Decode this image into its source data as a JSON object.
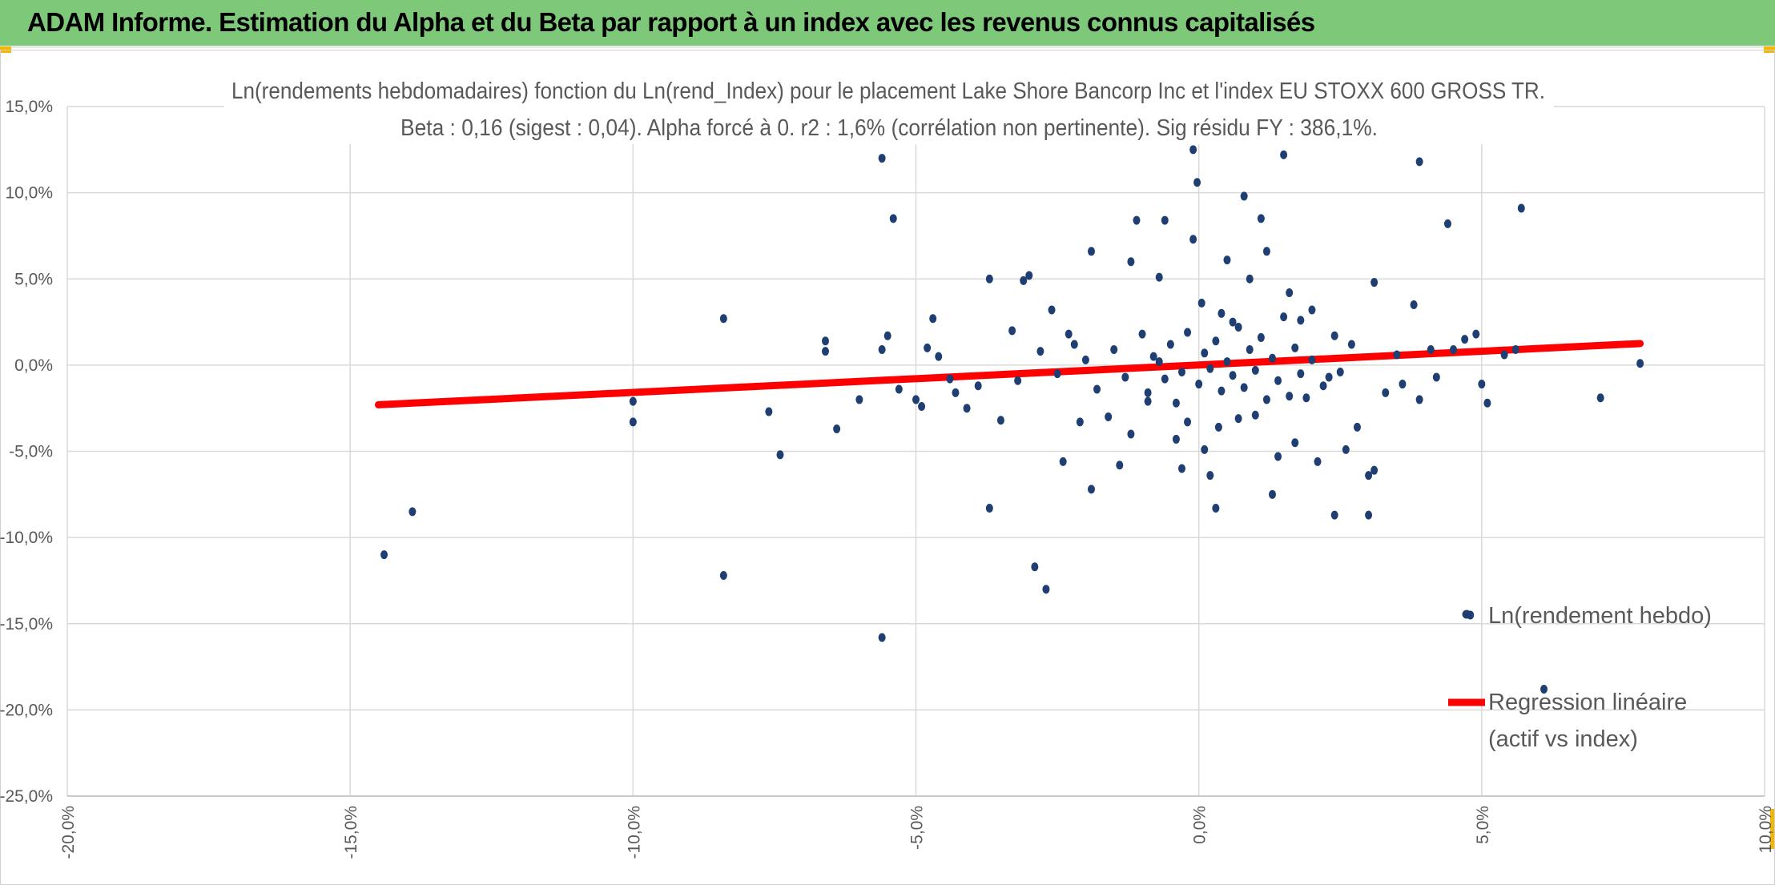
{
  "banner": {
    "title": "ADAM Informe. Estimation du Alpha et du Beta par rapport à un index avec les revenus connus capitalisés",
    "background": "#7ec87a",
    "accent": "#f2b705"
  },
  "chart_data": {
    "type": "scatter",
    "title_line1": "Ln(rendements hebdomadaires) fonction du Ln(rend_Index) pour le placement Lake Shore Bancorp Inc et l'index EU STOXX 600 GROSS TR.",
    "title_line2": "Beta : 0,16 (sigest : 0,04). Alpha forcé à 0. r2 : 1,6% (corrélation non pertinente). Sig résidu FY : 386,1%.",
    "xlim": [
      -20,
      10
    ],
    "ylim": [
      -25,
      15
    ],
    "x_ticks": [
      -20,
      -15,
      -10,
      -5,
      0,
      5,
      10
    ],
    "y_ticks": [
      15,
      10,
      5,
      0,
      -5,
      -10,
      -15,
      -20,
      -25
    ],
    "x_tick_labels": [
      "-20,0%",
      "-15,0%",
      "-10,0%",
      "-5,0%",
      "0,0%",
      "5,0%",
      "10,0%"
    ],
    "y_tick_labels": [
      "15,0%",
      "10,0%",
      "5,0%",
      "0,0%",
      "-5,0%",
      "-10,0%",
      "-15,0%",
      "-20,0%",
      "-25,0%"
    ],
    "grid": true,
    "legend_position": "right",
    "series": [
      {
        "name": "Ln(rendement hebdo)",
        "kind": "scatter",
        "color": "#1f3f73",
        "points": [
          [
            -14.4,
            -11.0
          ],
          [
            -13.9,
            -8.5
          ],
          [
            -10.0,
            -2.1
          ],
          [
            -10.0,
            -3.3
          ],
          [
            -8.4,
            2.7
          ],
          [
            -8.4,
            -12.2
          ],
          [
            -7.6,
            -2.7
          ],
          [
            -7.4,
            -5.2
          ],
          [
            -6.6,
            1.4
          ],
          [
            -6.6,
            0.8
          ],
          [
            -6.4,
            -3.7
          ],
          [
            -6.0,
            -2.0
          ],
          [
            -5.6,
            12.0
          ],
          [
            -5.6,
            -15.8
          ],
          [
            -5.4,
            8.5
          ],
          [
            -5.5,
            1.7
          ],
          [
            -5.6,
            0.9
          ],
          [
            -5.3,
            -1.4
          ],
          [
            -5.0,
            -2.0
          ],
          [
            -4.9,
            -2.4
          ],
          [
            -4.8,
            1.0
          ],
          [
            -4.7,
            2.7
          ],
          [
            -4.6,
            0.5
          ],
          [
            -4.4,
            -0.8
          ],
          [
            -4.3,
            -1.6
          ],
          [
            -4.1,
            -2.5
          ],
          [
            -3.9,
            -1.2
          ],
          [
            -3.7,
            5.0
          ],
          [
            -3.7,
            -8.3
          ],
          [
            -3.5,
            -3.2
          ],
          [
            -3.3,
            2.0
          ],
          [
            -3.1,
            4.9
          ],
          [
            -3.0,
            5.2
          ],
          [
            -2.9,
            -11.7
          ],
          [
            -2.7,
            -13.0
          ],
          [
            -2.6,
            3.2
          ],
          [
            -2.4,
            -5.6
          ],
          [
            -2.3,
            1.8
          ],
          [
            -2.1,
            -3.3
          ],
          [
            -1.9,
            6.6
          ],
          [
            -1.9,
            -7.2
          ],
          [
            -1.6,
            -3.0
          ],
          [
            -1.4,
            -5.8
          ],
          [
            -1.2,
            6.0
          ],
          [
            -1.2,
            -4.0
          ],
          [
            -1.1,
            8.4
          ],
          [
            -0.9,
            -2.1
          ],
          [
            -0.7,
            5.1
          ],
          [
            -0.6,
            8.4
          ],
          [
            -0.4,
            -4.3
          ],
          [
            -0.3,
            -6.0
          ],
          [
            -0.2,
            -3.3
          ],
          [
            -0.1,
            7.3
          ],
          [
            -0.03,
            10.6
          ],
          [
            -0.1,
            12.5
          ],
          [
            0.1,
            -4.9
          ],
          [
            0.2,
            -6.4
          ],
          [
            0.3,
            -8.3
          ],
          [
            0.4,
            3.0
          ],
          [
            0.5,
            6.1
          ],
          [
            0.6,
            2.5
          ],
          [
            0.7,
            -3.1
          ],
          [
            0.8,
            9.8
          ],
          [
            0.9,
            5.0
          ],
          [
            1.0,
            -2.9
          ],
          [
            1.1,
            8.5
          ],
          [
            1.2,
            6.6
          ],
          [
            1.3,
            -7.5
          ],
          [
            1.4,
            -5.3
          ],
          [
            1.5,
            12.2
          ],
          [
            1.6,
            4.2
          ],
          [
            1.7,
            -4.5
          ],
          [
            1.8,
            2.6
          ],
          [
            1.9,
            -1.9
          ],
          [
            2.0,
            3.2
          ],
          [
            2.1,
            -5.6
          ],
          [
            2.3,
            -0.7
          ],
          [
            2.4,
            -8.7
          ],
          [
            2.6,
            -4.9
          ],
          [
            2.7,
            1.2
          ],
          [
            2.8,
            -3.6
          ],
          [
            3.0,
            -6.4
          ],
          [
            3.0,
            -8.7
          ],
          [
            3.1,
            -6.1
          ],
          [
            3.1,
            4.8
          ],
          [
            3.3,
            -1.6
          ],
          [
            3.5,
            0.6
          ],
          [
            3.6,
            -1.1
          ],
          [
            3.8,
            3.5
          ],
          [
            3.9,
            11.8
          ],
          [
            3.9,
            -2.0
          ],
          [
            4.1,
            0.9
          ],
          [
            4.2,
            -0.7
          ],
          [
            4.4,
            8.2
          ],
          [
            4.5,
            0.9
          ],
          [
            4.7,
            1.5
          ],
          [
            4.9,
            1.8
          ],
          [
            5.0,
            -1.1
          ],
          [
            5.1,
            -2.2
          ],
          [
            5.4,
            0.6
          ],
          [
            5.6,
            0.9
          ],
          [
            5.7,
            9.1
          ],
          [
            6.1,
            -18.8
          ],
          [
            4.8,
            -14.5
          ],
          [
            7.1,
            -1.9
          ],
          [
            7.8,
            0.1
          ],
          [
            -0.8,
            0.5
          ],
          [
            -0.6,
            -0.8
          ],
          [
            -0.5,
            1.2
          ],
          [
            -0.3,
            -0.4
          ],
          [
            -0.2,
            1.9
          ],
          [
            0.0,
            -1.1
          ],
          [
            0.1,
            0.7
          ],
          [
            0.2,
            -0.2
          ],
          [
            0.3,
            1.4
          ],
          [
            0.4,
            -1.5
          ],
          [
            0.5,
            0.2
          ],
          [
            0.6,
            -0.6
          ],
          [
            0.7,
            2.2
          ],
          [
            0.8,
            -1.3
          ],
          [
            0.9,
            0.9
          ],
          [
            1.0,
            -0.3
          ],
          [
            1.1,
            1.6
          ],
          [
            1.2,
            -2.0
          ],
          [
            1.3,
            0.4
          ],
          [
            1.4,
            -0.9
          ],
          [
            1.5,
            2.8
          ],
          [
            1.6,
            -1.8
          ],
          [
            1.7,
            1.0
          ],
          [
            1.8,
            -0.5
          ],
          [
            -1.5,
            0.9
          ],
          [
            -1.3,
            -0.7
          ],
          [
            -1.0,
            1.8
          ],
          [
            -0.9,
            -1.6
          ],
          [
            -0.7,
            0.2
          ],
          [
            -0.4,
            -2.2
          ],
          [
            2.0,
            0.3
          ],
          [
            2.2,
            -1.2
          ],
          [
            2.4,
            1.7
          ],
          [
            2.5,
            -0.4
          ],
          [
            -2.0,
            0.3
          ],
          [
            -1.8,
            -1.4
          ],
          [
            -2.5,
            -0.5
          ],
          [
            -2.8,
            0.8
          ],
          [
            -3.2,
            -0.9
          ],
          [
            -2.2,
            1.2
          ],
          [
            0.05,
            3.6
          ],
          [
            0.35,
            -3.6
          ]
        ]
      },
      {
        "name": "Regression linéaire (actif vs index)",
        "kind": "line",
        "color": "#ff0000",
        "points": [
          [
            -14.5,
            -2.3
          ],
          [
            7.8,
            1.25
          ]
        ]
      }
    ]
  }
}
